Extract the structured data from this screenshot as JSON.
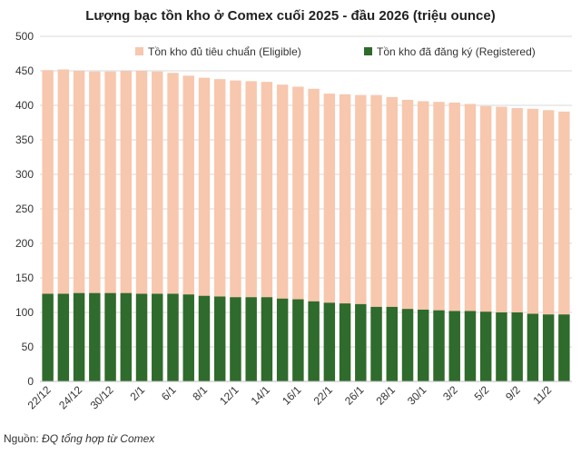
{
  "chart_data": {
    "type": "bar",
    "stacked": false,
    "overlapping": true,
    "title": "Lượng bạc tồn kho ở Comex cuối 2025 - đầu 2026 (triệu ounce)",
    "xlabel": "",
    "ylabel": "",
    "ylim": [
      0,
      500
    ],
    "yticks": [
      0,
      50,
      100,
      150,
      200,
      250,
      300,
      350,
      400,
      450,
      500
    ],
    "grid": true,
    "legend_position": "top-right",
    "x_tick_labels": [
      "22/12",
      "24/12",
      "30/12",
      "2/1",
      "6/1",
      "8/1",
      "12/1",
      "14/1",
      "16/1",
      "22/1",
      "26/1",
      "28/1",
      "30/1",
      "3/2",
      "5/2",
      "9/2",
      "11/2"
    ],
    "series": [
      {
        "name": "Tồn kho đủ tiêu chuẩn (Eligible)",
        "color": "#F7C7AE",
        "values": [
          451,
          452,
          450,
          449,
          449,
          450,
          450,
          449,
          447,
          443,
          440,
          438,
          436,
          435,
          434,
          430,
          427,
          424,
          417,
          416,
          415,
          415,
          412,
          408,
          406,
          405,
          404,
          402,
          399,
          398,
          396,
          395,
          393,
          391
        ]
      },
      {
        "name": "Tồn kho đã đăng ký (Registered)",
        "color": "#2E6B2C",
        "values": [
          127,
          127,
          128,
          128,
          128,
          128,
          127,
          127,
          127,
          126,
          124,
          123,
          122,
          122,
          122,
          120,
          119,
          116,
          114,
          113,
          112,
          108,
          108,
          105,
          104,
          103,
          102,
          102,
          101,
          100,
          100,
          98,
          97,
          97
        ]
      }
    ]
  },
  "source": {
    "label": "Nguồn:",
    "text": "ĐQ tổng hợp từ Comex"
  }
}
